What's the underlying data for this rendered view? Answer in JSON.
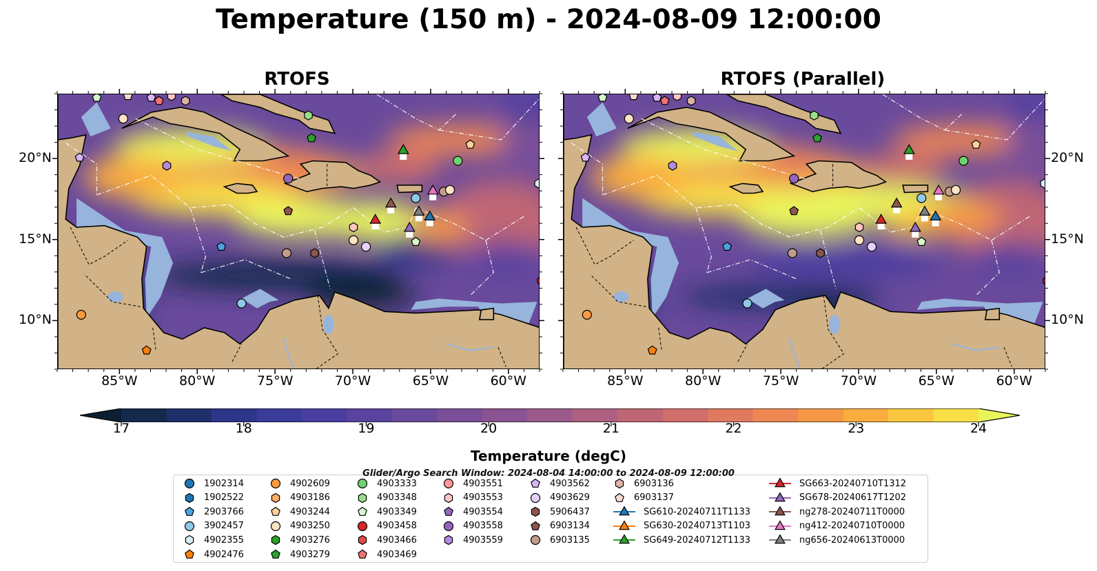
{
  "title": "Temperature (150 m) - 2024-08-09 12:00:00",
  "panels": [
    {
      "title": "RTOFS",
      "variant": "a"
    },
    {
      "title": "RTOFS (Parallel)",
      "variant": "b"
    }
  ],
  "axes": {
    "lon_ticks": [
      "85°W",
      "80°W",
      "75°W",
      "70°W",
      "65°W",
      "60°W"
    ],
    "lat_ticks": [
      "20°N",
      "15°N",
      "10°N"
    ],
    "lon_range": [
      -89,
      -58
    ],
    "lat_range": [
      7,
      24
    ]
  },
  "colorbar": {
    "title": "Temperature (degC)",
    "tick_labels": [
      "17",
      "18",
      "19",
      "20",
      "21",
      "22",
      "23",
      "24"
    ],
    "range": [
      16.5,
      24.5
    ],
    "colors": [
      "#0c2033",
      "#142a4d",
      "#1f2f6a",
      "#2c3588",
      "#3b3b9a",
      "#4a3ea0",
      "#5a439f",
      "#6a4a9c",
      "#7a4f97",
      "#8a5392",
      "#9b5a8b",
      "#ad6080",
      "#bf6674",
      "#d06e6a",
      "#e07a5e",
      "#ee8752",
      "#f59845",
      "#f9ad3f",
      "#fac63f",
      "#f8df47",
      "#e9f55b"
    ]
  },
  "search_window": "Glider/Argo Search Window: 2024-08-04 14:00:00 to 2024-08-09 12:00:00",
  "legend": [
    {
      "label": "1902314",
      "marker": "circle",
      "color": "#1f77b4"
    },
    {
      "label": "1902522",
      "marker": "hexagon",
      "color": "#1f77b4"
    },
    {
      "label": "2903766",
      "marker": "pentagon",
      "color": "#4aa3df"
    },
    {
      "label": "3902457",
      "marker": "circle",
      "color": "#8ecae6"
    },
    {
      "label": "4902355",
      "marker": "hexagon",
      "color": "#d8ecf8"
    },
    {
      "label": "4902476",
      "marker": "pentagon",
      "color": "#ff7f0e"
    },
    {
      "label": "4902609",
      "marker": "circle",
      "color": "#ff9a3c"
    },
    {
      "label": "4903186",
      "marker": "hexagon",
      "color": "#ffad66"
    },
    {
      "label": "4903244",
      "marker": "pentagon",
      "color": "#ffd199"
    },
    {
      "label": "4903250",
      "marker": "circle",
      "color": "#ffe4c4"
    },
    {
      "label": "4903276",
      "marker": "hexagon",
      "color": "#2ca02c"
    },
    {
      "label": "4903279",
      "marker": "pentagon",
      "color": "#2ca02c"
    },
    {
      "label": "4903333",
      "marker": "circle",
      "color": "#6fd36f"
    },
    {
      "label": "4903348",
      "marker": "hexagon",
      "color": "#98df8a"
    },
    {
      "label": "4903349",
      "marker": "pentagon",
      "color": "#d4f7c8"
    },
    {
      "label": "4903458",
      "marker": "circle",
      "color": "#d62728"
    },
    {
      "label": "4903466",
      "marker": "hexagon",
      "color": "#e34a4a"
    },
    {
      "label": "4903469",
      "marker": "pentagon",
      "color": "#f07272"
    },
    {
      "label": "4903551",
      "marker": "circle",
      "color": "#ff9896"
    },
    {
      "label": "4903553",
      "marker": "hexagon",
      "color": "#ffc6c4"
    },
    {
      "label": "4903554",
      "marker": "pentagon",
      "color": "#9467bd"
    },
    {
      "label": "4903558",
      "marker": "circle",
      "color": "#9467bd"
    },
    {
      "label": "4903559",
      "marker": "hexagon",
      "color": "#b48be0"
    },
    {
      "label": "4903562",
      "marker": "pentagon",
      "color": "#d7b5f5"
    },
    {
      "label": "4903629",
      "marker": "circle",
      "color": "#e6d2fa"
    },
    {
      "label": "5906437",
      "marker": "hexagon",
      "color": "#8c564b"
    },
    {
      "label": "6903134",
      "marker": "pentagon",
      "color": "#8c564b"
    },
    {
      "label": "6903135",
      "marker": "circle",
      "color": "#c49c8c"
    },
    {
      "label": "6903136",
      "marker": "hexagon",
      "color": "#dbb4a6"
    },
    {
      "label": "6903137",
      "marker": "pentagon",
      "color": "#f7d8cc"
    },
    {
      "label": "SG610-20240711T1133",
      "marker": "triangle-line",
      "color": "#1f77b4"
    },
    {
      "label": "SG630-20240713T1103",
      "marker": "triangle-line",
      "color": "#ff7f0e"
    },
    {
      "label": "SG649-20240712T1133",
      "marker": "triangle-line",
      "color": "#2ca02c"
    },
    {
      "label": "SG663-20240710T1312",
      "marker": "triangle-line",
      "color": "#d62728"
    },
    {
      "label": "SG678-20240617T1202",
      "marker": "triangle-line",
      "color": "#9467bd"
    },
    {
      "label": "ng278-20240711T0000",
      "marker": "triangle-line",
      "color": "#8c564b"
    },
    {
      "label": "ng412-20240710T0000",
      "marker": "triangle-line",
      "color": "#e377c2"
    },
    {
      "label": "ng656-20240613T0000",
      "marker": "triangle-line",
      "color": "#7f7f7f"
    }
  ],
  "platforms": [
    {
      "id": "4903349",
      "lon": -86.5,
      "lat": 23.8
    },
    {
      "id": "6903137",
      "lon": -84.5,
      "lat": 23.9
    },
    {
      "id": "4903562",
      "lon": -83.0,
      "lat": 23.8
    },
    {
      "id": "4903469",
      "lon": -82.5,
      "lat": 23.6
    },
    {
      "id": "4903553",
      "lon": -81.7,
      "lat": 23.9
    },
    {
      "id": "6903136",
      "lon": -80.8,
      "lat": 23.6
    },
    {
      "id": "4903250",
      "lon": -84.8,
      "lat": 22.5
    },
    {
      "id": "4903562",
      "lon": -87.6,
      "lat": 20.1
    },
    {
      "id": "4903559",
      "lon": -82.0,
      "lat": 19.6
    },
    {
      "id": "4903348",
      "lon": -72.9,
      "lat": 22.7
    },
    {
      "id": "4903279",
      "lon": -72.7,
      "lat": 21.3
    },
    {
      "id": "4903244",
      "lon": -62.5,
      "lat": 20.9
    },
    {
      "id": "4903333",
      "lon": -63.3,
      "lat": 19.9
    },
    {
      "id": "4902355",
      "lon": -58.1,
      "lat": 18.5
    },
    {
      "id": "4903558",
      "lon": -74.2,
      "lat": 18.8
    },
    {
      "id": "6903134",
      "lon": -74.2,
      "lat": 16.8
    },
    {
      "id": "3902457",
      "lon": -66.0,
      "lat": 17.6
    },
    {
      "id": "6903135",
      "lon": -64.2,
      "lat": 18.0
    },
    {
      "id": "4903250",
      "lon": -63.8,
      "lat": 18.1
    },
    {
      "id": "4903553",
      "lon": -70.0,
      "lat": 15.8
    },
    {
      "id": "4903250",
      "lon": -70.0,
      "lat": 15.0
    },
    {
      "id": "4903629",
      "lon": -69.2,
      "lat": 14.6
    },
    {
      "id": "4903349",
      "lon": -66.0,
      "lat": 14.9
    },
    {
      "id": "2903766",
      "lon": -78.5,
      "lat": 14.6
    },
    {
      "id": "6903135",
      "lon": -74.3,
      "lat": 14.2
    },
    {
      "id": "5906437",
      "lon": -72.5,
      "lat": 14.2
    },
    {
      "id": "3902457",
      "lon": -77.2,
      "lat": 11.1
    },
    {
      "id": "4903458",
      "lon": -57.9,
      "lat": 12.5
    },
    {
      "id": "4902609",
      "lon": -87.5,
      "lat": 10.4
    },
    {
      "id": "4902476",
      "lon": -83.3,
      "lat": 8.2
    }
  ],
  "gliders": [
    {
      "id": "SG649-20240712T1133",
      "lon": -66.8,
      "lat": 20.6
    },
    {
      "id": "SG663-20240710T1312",
      "lon": -68.6,
      "lat": 16.3
    },
    {
      "id": "ng278-20240711T0000",
      "lon": -67.6,
      "lat": 17.3
    },
    {
      "id": "ng656-20240613T0000",
      "lon": -65.8,
      "lat": 16.8
    },
    {
      "id": "SG610-20240711T1133",
      "lon": -65.1,
      "lat": 16.5
    },
    {
      "id": "ng412-20240710T0000",
      "lon": -64.9,
      "lat": 18.1
    },
    {
      "id": "SG678-20240617T1202",
      "lon": -66.4,
      "lat": 15.8
    }
  ]
}
